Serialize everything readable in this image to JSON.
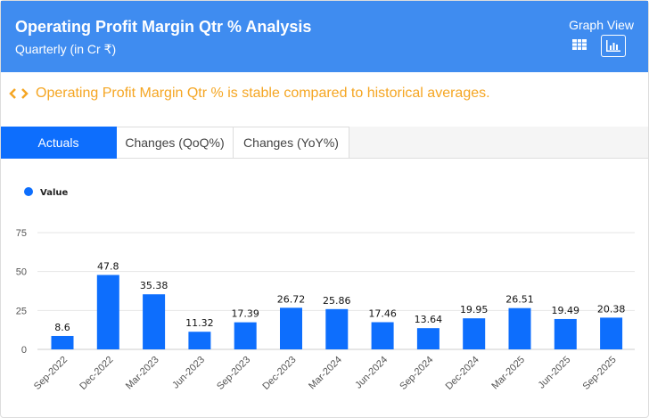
{
  "header": {
    "title": "Operating Profit Margin Qtr % Analysis",
    "subtitle": "Quarterly (in Cr ₹)",
    "view_label": "Graph View"
  },
  "message": "Operating Profit Margin Qtr % is stable compared to historical averages.",
  "tabs": [
    {
      "label": "Actuals"
    },
    {
      "label": "Changes (QoQ%)"
    },
    {
      "label": "Changes (YoY%)"
    }
  ],
  "colors": {
    "bar": "#0d6efd",
    "header": "#3f8cf0",
    "accent": "#f5a623"
  },
  "chart_data": {
    "type": "bar",
    "legend": "Value",
    "legend_placement": "top-left",
    "categories": [
      "Sep-2022",
      "Dec-2022",
      "Mar-2023",
      "Jun-2023",
      "Sep-2023",
      "Dec-2023",
      "Mar-2024",
      "Jun-2024",
      "Sep-2024",
      "Dec-2024",
      "Mar-2025",
      "Jun-2025",
      "Sep-2025"
    ],
    "values": [
      8.6,
      47.8,
      35.38,
      11.32,
      17.39,
      26.72,
      25.86,
      17.46,
      13.64,
      19.95,
      26.51,
      19.49,
      20.38
    ],
    "yticks": [
      0,
      25,
      50,
      75
    ],
    "ylim": [
      0,
      75
    ],
    "grid": true
  }
}
